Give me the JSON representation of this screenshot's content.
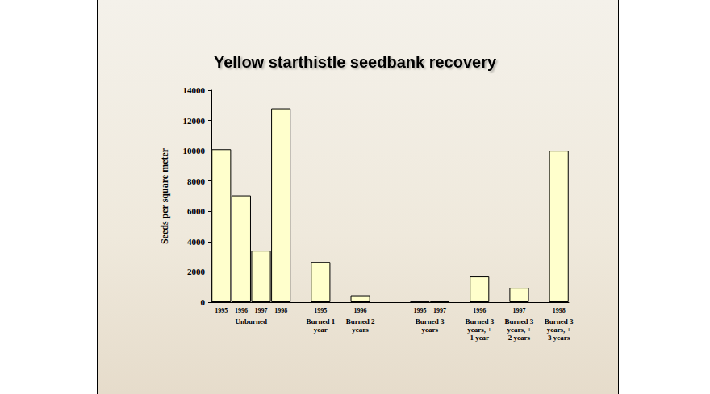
{
  "chart_data": {
    "type": "bar",
    "title": "Yellow starthistle seedbank recovery",
    "y_label": "Seeds per square meter",
    "categories": [
      "1995",
      "1996",
      "1997",
      "1998",
      null,
      "1995",
      null,
      "1996",
      null,
      null,
      "1995",
      "1997",
      null,
      "1996",
      null,
      "1997",
      null,
      "1998"
    ],
    "groups": [
      "Unburned",
      "Unburned",
      "Unburned",
      "Unburned",
      null,
      "Burned 1 year",
      null,
      "Burned 2 years",
      null,
      null,
      "Burned 3 years",
      "Burned 3 years",
      null,
      "Burned 3 years, + 1 year",
      null,
      "Burned 3 years, + 2 years",
      null,
      "Burned 3 years, + 3 years"
    ],
    "values": [
      10100,
      7050,
      3400,
      12800,
      null,
      2650,
      null,
      450,
      null,
      null,
      30,
      100,
      null,
      1700,
      null,
      950,
      null,
      10000
    ],
    "color": "#ffffcc",
    "ylim": [
      0,
      14000
    ],
    "yticks": [
      0,
      2000,
      4000,
      6000,
      8000,
      10000,
      12000,
      14000
    ],
    "grid": false
  }
}
